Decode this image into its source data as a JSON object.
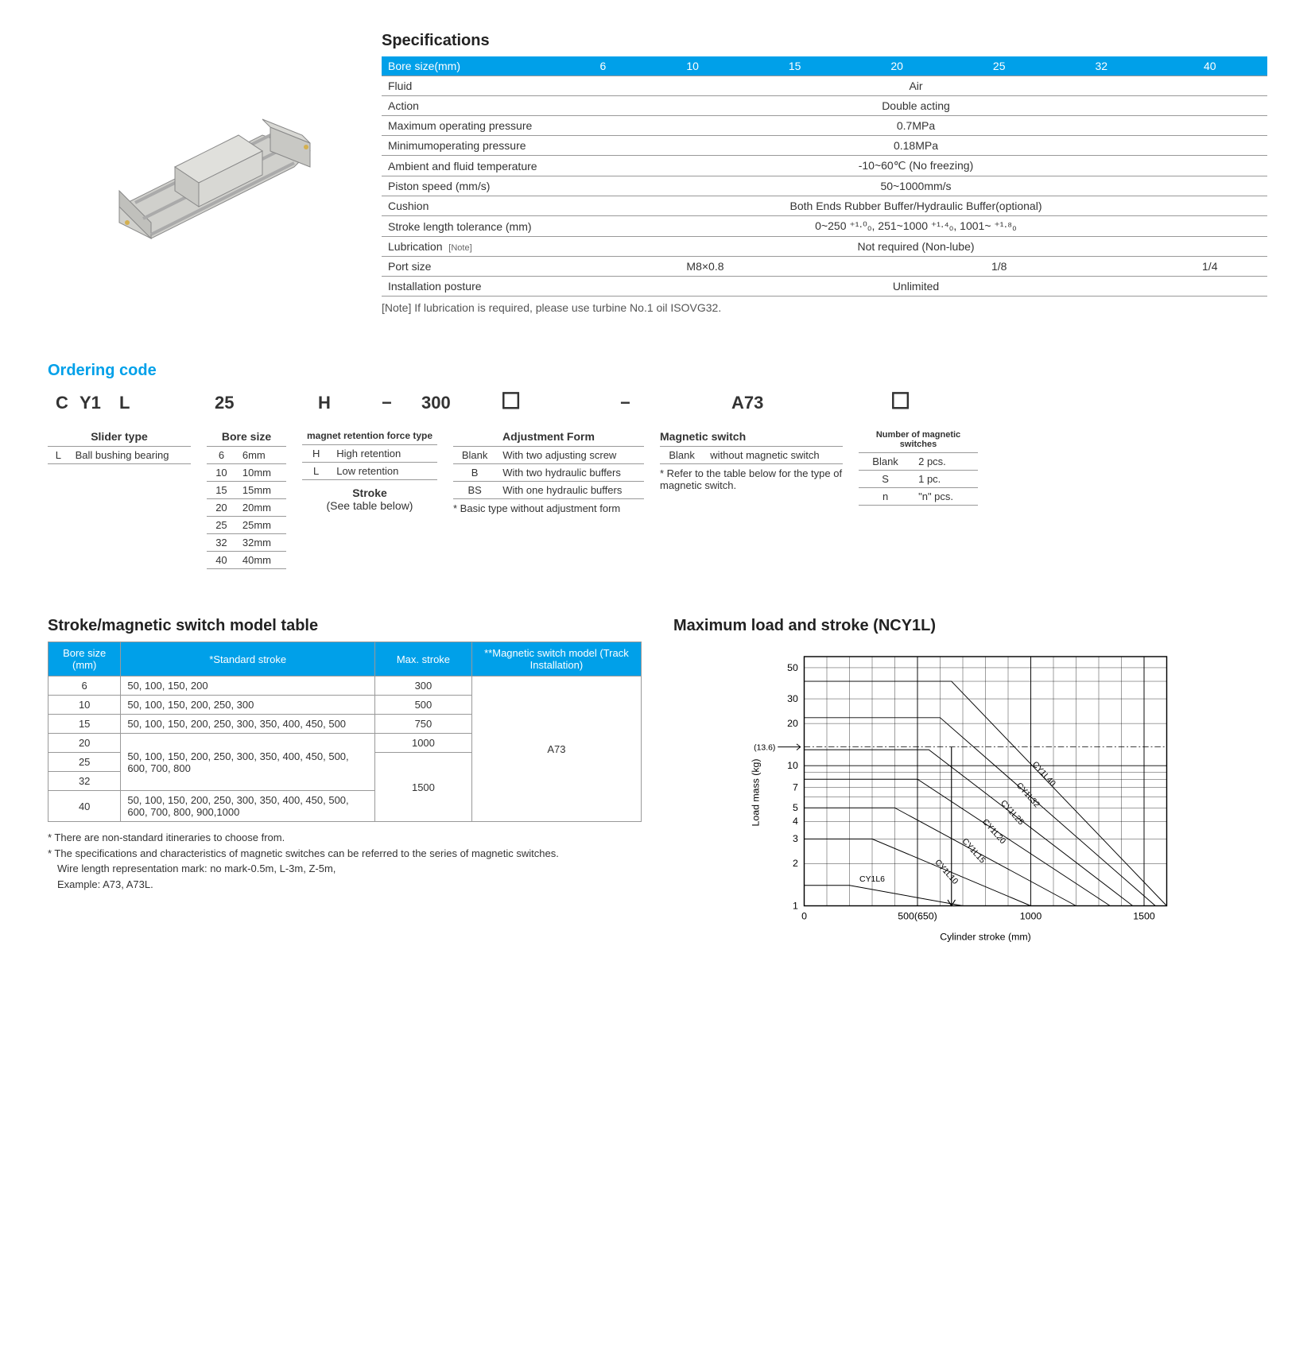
{
  "specifications": {
    "title": "Specifications",
    "header_label": "Bore size(mm)",
    "bore_sizes": [
      "6",
      "10",
      "15",
      "20",
      "25",
      "32",
      "40"
    ],
    "rows": [
      {
        "label": "Fluid",
        "value": "Air"
      },
      {
        "label": "Action",
        "value": "Double acting"
      },
      {
        "label": "Maximum operating pressure",
        "value": "0.7MPa"
      },
      {
        "label": "Minimumoperating pressure",
        "value": "0.18MPa"
      },
      {
        "label": "Ambient and fluid temperature",
        "value": "-10~60℃ (No freezing)"
      },
      {
        "label": "Piston speed (mm/s)",
        "value": "50~1000mm/s"
      },
      {
        "label": "Cushion",
        "value": "Both Ends Rubber Buffer/Hydraulic Buffer(optional)"
      },
      {
        "label": "Stroke length tolerance (mm)",
        "value": "0~250 ⁺¹·⁰₀, 251~1000 ⁺¹·⁴₀, 1001~ ⁺¹·⁸₀"
      },
      {
        "label": "Lubrication",
        "note": "[Note]",
        "value": "Not required (Non-lube)"
      }
    ],
    "port_row": {
      "label": "Port size",
      "values": [
        "M8×0.8",
        "1/8",
        "1/4"
      ]
    },
    "install_row": {
      "label": "Installation posture",
      "value": "Unlimited"
    },
    "footnote": "[Note] If lubrication is required, please use turbine No.1 oil ISOVG32."
  },
  "ordering": {
    "title": "Ordering code",
    "code_parts": {
      "c": "C",
      "y1": "Y1",
      "l": "L",
      "bore": "25",
      "h": "H",
      "dash1": "−",
      "stroke": "300",
      "box1": "☐",
      "dash2": "−",
      "switch": "A73",
      "box2": "☐"
    },
    "slider_type": {
      "title": "Slider type",
      "rows": [
        {
          "code": "L",
          "desc": "Ball bushing bearing"
        }
      ]
    },
    "bore_size": {
      "title": "Bore size",
      "rows": [
        {
          "code": "6",
          "desc": "6mm"
        },
        {
          "code": "10",
          "desc": "10mm"
        },
        {
          "code": "15",
          "desc": "15mm"
        },
        {
          "code": "20",
          "desc": "20mm"
        },
        {
          "code": "25",
          "desc": "25mm"
        },
        {
          "code": "32",
          "desc": "32mm"
        },
        {
          "code": "40",
          "desc": "40mm"
        }
      ]
    },
    "magnet_force": {
      "title": "magnet retention force type",
      "rows": [
        {
          "code": "H",
          "desc": "High retention"
        },
        {
          "code": "L",
          "desc": "Low retention"
        }
      ]
    },
    "stroke_ref": {
      "title": "Stroke",
      "text": "(See table below)"
    },
    "adjustment": {
      "title": "Adjustment Form",
      "rows": [
        {
          "code": "Blank",
          "desc": "With two adjusting screw"
        },
        {
          "code": "B",
          "desc": "With two hydraulic buffers"
        },
        {
          "code": "BS",
          "desc": "With one hydraulic buffers"
        }
      ],
      "footnote": "* Basic type without adjustment form"
    },
    "magnetic_switch": {
      "title": "Magnetic switch",
      "rows": [
        {
          "code": "Blank",
          "desc": "without magnetic switch"
        }
      ],
      "footnote": "* Refer to the table below for the type of magnetic switch."
    },
    "num_switches": {
      "title": "Number of magnetic switches",
      "rows": [
        {
          "code": "Blank",
          "desc": "2 pcs."
        },
        {
          "code": "S",
          "desc": "1 pc."
        },
        {
          "code": "n",
          "desc": "\"n\" pcs."
        }
      ]
    }
  },
  "stroke_table": {
    "title": "Stroke/magnetic switch model table",
    "headers": [
      "Bore size (mm)",
      "*Standard stroke",
      "Max. stroke",
      "**Magnetic switch model (Track Installation)"
    ],
    "rows": [
      {
        "bore": "6",
        "std": "50, 100, 150, 200",
        "max": "300"
      },
      {
        "bore": "10",
        "std": "50, 100, 150, 200, 250, 300",
        "max": "500"
      },
      {
        "bore": "15",
        "std": "50, 100, 150, 200, 250, 300, 350, 400, 450, 500",
        "max": "750"
      },
      {
        "bore": "20",
        "std_shared": "50, 100, 150, 200, 250, 300, 350, 400, 450, 500, 600, 700, 800",
        "max": "1000"
      },
      {
        "bore": "25"
      },
      {
        "bore": "32"
      },
      {
        "bore": "40",
        "std": "50, 100, 150, 200, 250, 300, 350, 400, 450, 500, 600, 700, 800, 900,1000"
      }
    ],
    "max_1500": "1500",
    "switch_model": "A73",
    "footnotes": [
      "* There are non-standard itineraries to choose from.",
      "* The specifications and characteristics of magnetic switches can be referred to the series of magnetic switches.",
      "Wire length representation mark: no mark-0.5m, L-3m, Z-5m,",
      "Example: A73, A73L."
    ]
  },
  "chart": {
    "title": "Maximum load and stroke (NCY1L)",
    "xlabel": "Cylinder stroke (mm)",
    "ylabel": "Load mass (kg)",
    "xlim": [
      0,
      1600
    ],
    "ylim_log": [
      1,
      60
    ],
    "xticks": [
      "0",
      "500(650)",
      "1000",
      "1500"
    ],
    "yticks": [
      "1",
      "2",
      "3",
      "4",
      "5",
      "7",
      "10",
      "20",
      "30",
      "50"
    ],
    "y_annotation": "(13.6)",
    "series": [
      "CY1L6",
      "CY1L10",
      "CY1L15",
      "CY1L20",
      "CY1L25",
      "CY1L32",
      "CY1L40"
    ],
    "background_color": "#ffffff",
    "grid_color": "#000000",
    "line_color": "#000000"
  }
}
